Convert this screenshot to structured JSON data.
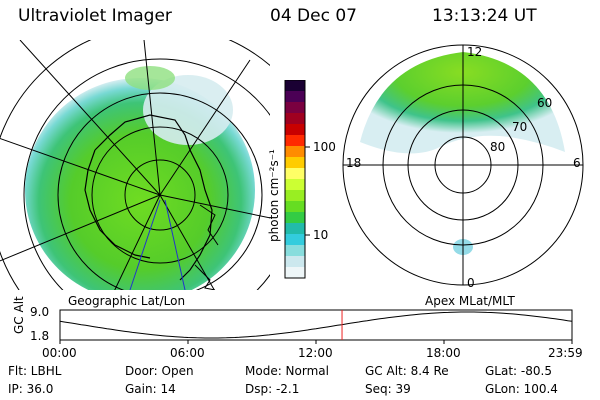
{
  "header": {
    "instrument": "Ultraviolet Imager",
    "date": "04 Dec 07",
    "time": "13:13:24 UT"
  },
  "colorbar": {
    "unit_label": "photon cm⁻²s⁻¹",
    "ticks": [
      {
        "label": "100",
        "value": 100
      },
      {
        "label": "10",
        "value": 10
      }
    ],
    "colors": [
      "#1a0033",
      "#4b0055",
      "#7a0040",
      "#a00020",
      "#c80000",
      "#ff2a00",
      "#ff8c00",
      "#ffcc00",
      "#ffff66",
      "#ccff33",
      "#99ee22",
      "#66dd22",
      "#33cc44",
      "#22bbaa",
      "#33ccdd",
      "#88dddd",
      "#cce8ee",
      "#eef6f8"
    ]
  },
  "left_map": {
    "label": "Geographic Lat/Lon"
  },
  "right_map": {
    "label": "Apex MLat/MLT",
    "lat_labels": [
      "60",
      "70",
      "80"
    ],
    "mlt_labels": {
      "top": "12",
      "left": "18",
      "right": "6",
      "bottom": "0"
    }
  },
  "altitude_plot": {
    "ylabel": "GC Alt",
    "y_ticks": [
      "9.0",
      "1.8"
    ],
    "x_ticks": [
      "00:00",
      "06:00",
      "12:00",
      "18:00",
      "23:59"
    ],
    "current_time_hours": 13.22,
    "y_range": [
      1.8,
      9.0
    ]
  },
  "info": {
    "filter": "Flt: LBHL",
    "ip": "IP: 36.0",
    "door": "Door: Open",
    "gain": "Gain: 14",
    "mode": "Mode: Normal",
    "dsp": "Dsp:    -2.1",
    "gc_alt": "GC Alt: 8.4 Re",
    "seq": "Seq: 39",
    "glat": "GLat: -80.5",
    "glon": "GLon: 100.4"
  }
}
